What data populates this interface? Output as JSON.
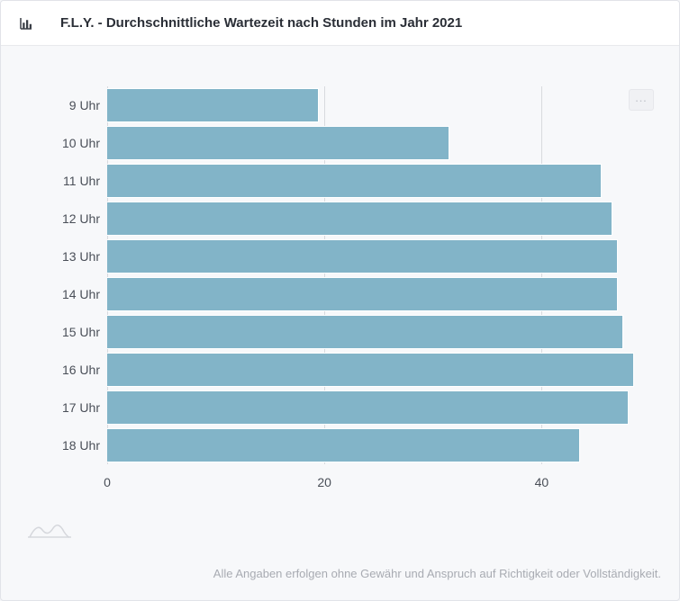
{
  "header": {
    "title": "F.L.Y. - Durchschnittliche Wartezeit nach Stunden im Jahr 2021"
  },
  "chart": {
    "type": "bar-horizontal",
    "categories": [
      "9 Uhr",
      "10 Uhr",
      "11 Uhr",
      "12 Uhr",
      "13 Uhr",
      "14 Uhr",
      "15 Uhr",
      "16 Uhr",
      "17 Uhr",
      "18 Uhr"
    ],
    "values": [
      19.5,
      31.5,
      45.5,
      46.5,
      47.0,
      47.0,
      47.5,
      48.5,
      48.0,
      43.5
    ],
    "bar_color": "#82b4c8",
    "bar_border_color": "#ffffff",
    "grid_color": "#d8dade",
    "background_color": "#f7f8fa",
    "text_color": "#4a4f58",
    "xlim": [
      0,
      50
    ],
    "xtick_step": 20,
    "xticks": [
      0,
      20,
      40
    ],
    "label_fontsize": 14,
    "bar_gap_ratio": 0.08
  },
  "menu": {
    "label": "…"
  },
  "disclaimer": "Alle Angaben erfolgen ohne Gewähr und Anspruch auf Richtigkeit oder Vollständigkeit."
}
